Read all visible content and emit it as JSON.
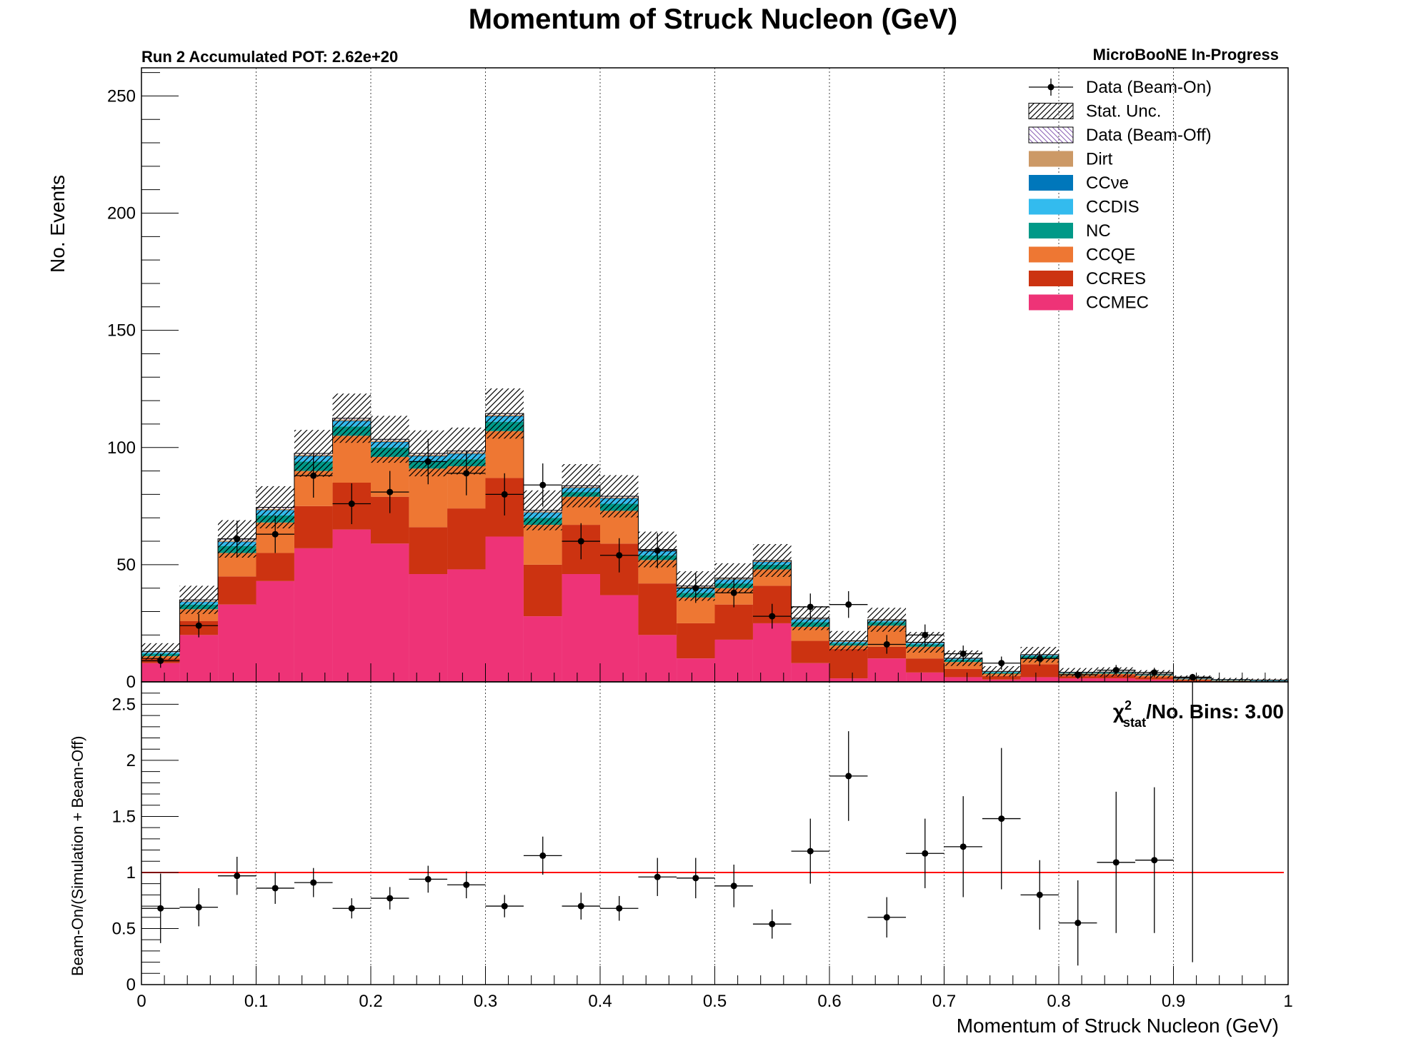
{
  "chart_data": {
    "type": "bar",
    "title": "Momentum of Struck Nucleon (GeV)",
    "subtitle_left": "Run 2 Accumulated POT: 2.62e+20",
    "subtitle_right": "MicroBooNE In-Progress",
    "xlabel": "Momentum of Struck Nucleon (GeV)",
    "xlim": [
      0,
      1
    ],
    "x_ticks": [
      "0",
      "0.1",
      "0.2",
      "0.3",
      "0.4",
      "0.5",
      "0.6",
      "0.7",
      "0.8",
      "0.9",
      "1"
    ],
    "bin_edges": [
      0,
      0.0333,
      0.0667,
      0.1,
      0.1333,
      0.1667,
      0.2,
      0.2333,
      0.2667,
      0.3,
      0.3333,
      0.3667,
      0.4,
      0.4333,
      0.4667,
      0.5,
      0.5333,
      0.5667,
      0.6,
      0.6333,
      0.6667,
      0.7,
      0.7333,
      0.7667,
      0.8,
      0.8333,
      0.8667,
      0.9,
      0.9333,
      0.9667,
      1.0
    ],
    "top_panel": {
      "ylabel": "No. Events",
      "ylim": [
        0,
        262
      ],
      "y_ticks": [
        "0",
        "50",
        "100",
        "150",
        "200",
        "250"
      ],
      "grid_x": true,
      "legend_position": "top-right",
      "stacked_series": [
        {
          "name": "CCMEC",
          "color": "#ee3377",
          "values": [
            8,
            20,
            33,
            43,
            57,
            65,
            59,
            46,
            48,
            62,
            28,
            46,
            37,
            20,
            10,
            18,
            25,
            8,
            1.5,
            10,
            4,
            2,
            1,
            2,
            1.5,
            1.5,
            1,
            0.3,
            0.1,
            0.1
          ]
        },
        {
          "name": "CCRES",
          "color": "#cc3311",
          "values": [
            2,
            6,
            12,
            12,
            18,
            20,
            20,
            20,
            26,
            25,
            22,
            21,
            22,
            22,
            15,
            15,
            16,
            9.5,
            12.5,
            5,
            6,
            3.5,
            1.5,
            5.5,
            1,
            1.5,
            1,
            0.5,
            0.2,
            0.1
          ]
        },
        {
          "name": "CCQE",
          "color": "#ee7733",
          "values": [
            1,
            5,
            10,
            13,
            15,
            20,
            17,
            25,
            18,
            20,
            17,
            12,
            14,
            10,
            11,
            7,
            7,
            6,
            1.5,
            9,
            5,
            3,
            1,
            2.5,
            1,
            0.5,
            0.7,
            0.3,
            0.2,
            0.1
          ]
        },
        {
          "name": "NC",
          "color": "#009988",
          "values": [
            1,
            2,
            3,
            3,
            4,
            4,
            4,
            3,
            3,
            4,
            3,
            2,
            3,
            2,
            2,
            2,
            2,
            2,
            1,
            1.5,
            1,
            1,
            0.5,
            1,
            0.2,
            0.3,
            0.2,
            0.1,
            0.1,
            0.1
          ]
        },
        {
          "name": "CCDIS",
          "color": "#33bbee",
          "values": [
            0.5,
            1,
            1.5,
            2,
            2,
            2,
            2,
            2,
            2,
            2,
            2,
            1.5,
            2,
            1.5,
            2,
            1.5,
            1,
            1,
            0.5,
            0.5,
            0.5,
            0.3,
            0.2,
            0.3,
            0.1,
            0.1,
            0.1,
            0.1,
            0.1,
            0.1
          ]
        },
        {
          "name": "CCνe",
          "color": "#0077bb",
          "values": [
            0.1,
            0.2,
            0.3,
            0.3,
            0.4,
            0.4,
            0.4,
            0.4,
            0.4,
            0.4,
            0.3,
            0.3,
            0.3,
            0.3,
            0.2,
            0.2,
            0.2,
            0.2,
            0.1,
            0.1,
            0.1,
            0.1,
            0.1,
            0.1,
            0.1,
            0.1,
            0.1,
            0.1,
            0.1,
            0.1
          ]
        },
        {
          "name": "Dirt",
          "color": "#cc9966",
          "values": [
            0.1,
            0.3,
            0.5,
            0.5,
            0.5,
            0.5,
            0.5,
            0.5,
            0.5,
            0.5,
            0.4,
            0.4,
            0.4,
            0.3,
            0.3,
            0.3,
            0.3,
            0.2,
            0.2,
            0.2,
            0.1,
            0.1,
            0.1,
            0.1,
            0.1,
            0.1,
            0.1,
            0.1,
            0.1,
            0.1
          ]
        },
        {
          "name": "Data (Beam-Off)",
          "color": "#7a5aa6",
          "values": [
            0.3,
            0.5,
            0.7,
            0.7,
            0.6,
            0.6,
            0.6,
            0.6,
            0.6,
            0.6,
            0.5,
            0.5,
            0.5,
            0.4,
            0.4,
            0.3,
            0.3,
            0.3,
            0.2,
            0.2,
            0.2,
            0.1,
            0.1,
            0.1,
            0.1,
            0.1,
            0.1,
            0.1,
            0.1,
            0.1
          ]
        }
      ],
      "stat_unc_half_width": [
        3.5,
        6,
        8,
        9,
        10,
        10.5,
        10,
        9.8,
        10,
        10.7,
        8.5,
        9.2,
        9,
        7.6,
        6.3,
        6.3,
        7,
        5.1,
        4.2,
        5.1,
        4.4,
        3.3,
        2.2,
        3.3,
        1.8,
        2,
        1.7,
        1.1,
        0.7,
        0.6
      ],
      "data_points": {
        "name": "Data (Beam-On)",
        "y": [
          9,
          24,
          61,
          63,
          88,
          76,
          81,
          94,
          89,
          80,
          84,
          60,
          54,
          56,
          40,
          38,
          28,
          32,
          33,
          16,
          20,
          12,
          8,
          10,
          3,
          5,
          4,
          2,
          0,
          0
        ],
        "yerr": [
          3,
          5,
          7.8,
          8,
          9.4,
          8.7,
          9,
          9.7,
          9.4,
          9,
          9.2,
          7.7,
          7.3,
          7.5,
          6.3,
          6.2,
          5.3,
          5.7,
          5.7,
          4,
          4.5,
          3.5,
          2.8,
          3.2,
          1.7,
          2.2,
          2,
          1.4,
          0,
          0
        ]
      },
      "legend": [
        {
          "label": "Data (Beam-On)",
          "style": "marker"
        },
        {
          "label": "Stat. Unc.",
          "style": "hatch"
        },
        {
          "label": "Data (Beam-Off)",
          "style": "hatch-purple"
        },
        {
          "label": "Dirt",
          "style": "fill",
          "color": "#cc9966"
        },
        {
          "label": "CCνe",
          "style": "fill",
          "color": "#0077bb"
        },
        {
          "label": "CCDIS",
          "style": "fill",
          "color": "#33bbee"
        },
        {
          "label": "NC",
          "style": "fill",
          "color": "#009988"
        },
        {
          "label": "CCQE",
          "style": "fill",
          "color": "#ee7733"
        },
        {
          "label": "CCRES",
          "style": "fill",
          "color": "#cc3311"
        },
        {
          "label": "CCMEC",
          "style": "fill",
          "color": "#ee3377"
        }
      ]
    },
    "ratio_panel": {
      "ylabel": "Beam-On/(Simulation + Beam-Off)",
      "ylim": [
        0,
        2.7
      ],
      "y_ticks": [
        "0",
        "0.5",
        "1",
        "1.5",
        "2",
        "2.5"
      ],
      "reference_line": 1,
      "reference_color": "#ff0000",
      "chi2_label": "/No. Bins: 3.00",
      "chi2_symbol": "χ",
      "chi2_sup": "2",
      "chi2_sub": "stat",
      "ratio": [
        0.68,
        0.69,
        0.97,
        0.86,
        0.91,
        0.68,
        0.77,
        0.94,
        0.89,
        0.7,
        1.15,
        0.7,
        0.68,
        0.96,
        0.95,
        0.88,
        0.54,
        1.19,
        1.86,
        0.6,
        1.17,
        1.23,
        1.48,
        0.8,
        0.55,
        1.09,
        1.11,
        2.7
      ],
      "ratio_err": [
        0.31,
        0.17,
        0.17,
        0.14,
        0.13,
        0.09,
        0.1,
        0.12,
        0.12,
        0.1,
        0.17,
        0.12,
        0.11,
        0.17,
        0.18,
        0.19,
        0.13,
        0.29,
        0.4,
        0.18,
        0.31,
        0.45,
        0.63,
        0.31,
        0.38,
        0.63,
        0.65,
        2.5
      ]
    }
  }
}
